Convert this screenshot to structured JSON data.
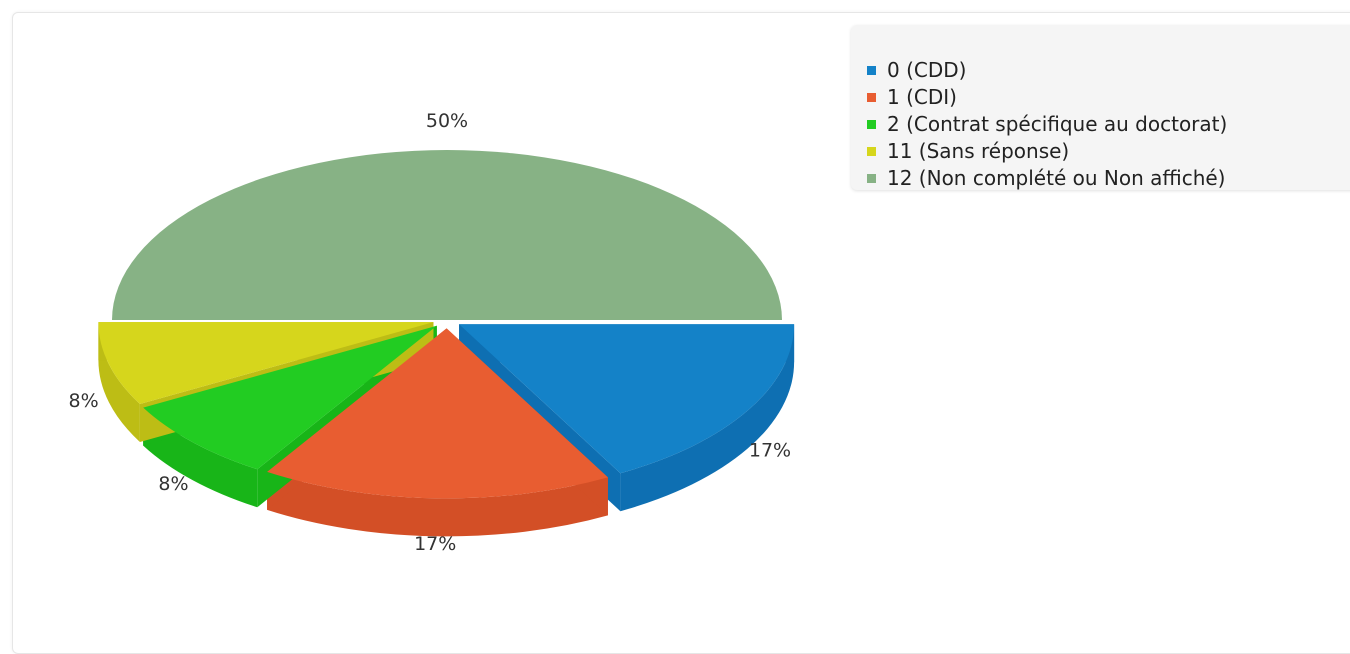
{
  "chart_data": {
    "type": "pie",
    "style": "3d",
    "legend_position": "top-right",
    "slices": [
      {
        "label": "0 (CDD)",
        "value": 17,
        "pct_label": "17%",
        "color": "#1482c8",
        "side_color": "#0e6fb2",
        "exploded": true
      },
      {
        "label": "1 (CDI)",
        "value": 17,
        "pct_label": "17%",
        "color": "#e85d31",
        "side_color": "#d34f26",
        "exploded": true
      },
      {
        "label": "2 (Contrat spécifique au doctorat)",
        "value": 8,
        "pct_label": "8%",
        "color": "#22cc22",
        "side_color": "#18b518",
        "exploded": true
      },
      {
        "label": "11 (Sans réponse)",
        "value": 8,
        "pct_label": "8%",
        "color": "#d6d61c",
        "side_color": "#bdbd15",
        "exploded": true
      },
      {
        "label": "12 (Non complété ou Non affiché)",
        "value": 50,
        "pct_label": "50%",
        "color": "#87b285",
        "side_color": "#729f70",
        "exploded": false
      }
    ]
  },
  "legend": {
    "items": [
      {
        "label": "0 (CDD)",
        "color": "#1482c8"
      },
      {
        "label": "1 (CDI)",
        "color": "#e85d31"
      },
      {
        "label": "2 (Contrat spécifique au doctorat)",
        "color": "#22cc22"
      },
      {
        "label": "11 (Sans réponse)",
        "color": "#d6d61c"
      },
      {
        "label": "12 (Non complété ou Non affiché)",
        "color": "#87b285"
      }
    ]
  }
}
